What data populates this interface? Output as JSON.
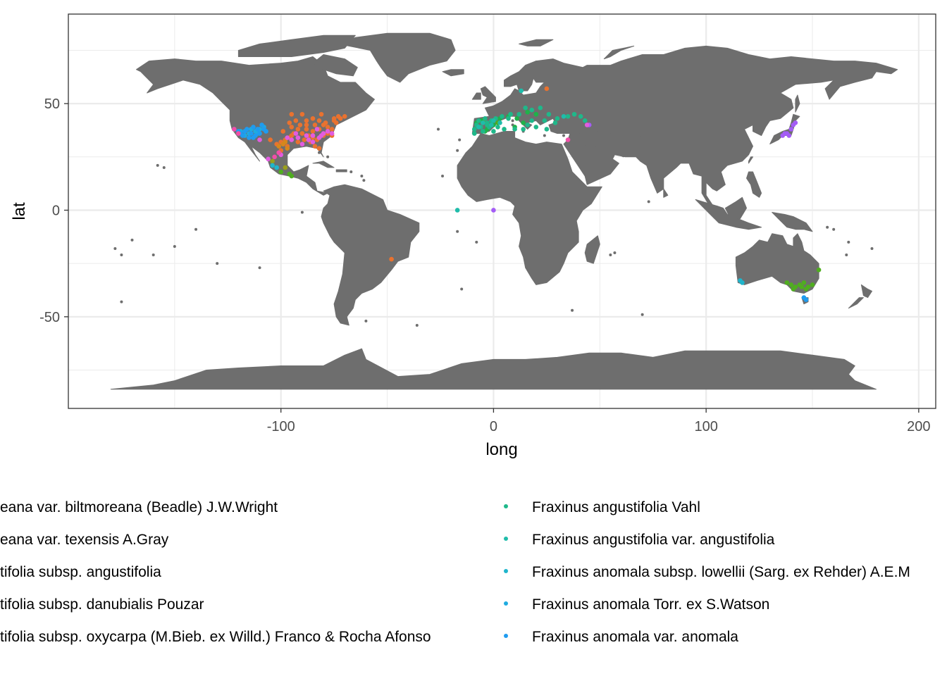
{
  "chart_data": {
    "type": "scatter",
    "title": "",
    "xlabel": "long",
    "ylabel": "lat",
    "xlim": [
      -200,
      208
    ],
    "ylim": [
      -93,
      92
    ],
    "x_ticks": [
      -100,
      0,
      100,
      200
    ],
    "y_ticks": [
      -50,
      0,
      50
    ],
    "x_tick_labels": [
      "-100",
      "0",
      "100",
      "200"
    ],
    "y_tick_labels": [
      "-50",
      "0",
      "50"
    ],
    "grid": true,
    "panel_background": "#ffffff",
    "grid_color": "#ebebeb",
    "land_color": "#6e6e6e",
    "legend_position": "bottom",
    "legend": [
      {
        "label": "Fraxinus americana var. biltmoreana (Beadle) J.W.Wright",
        "shown_label": "eana var. biltmoreana (Beadle) J.W.Wright",
        "color": "#e9722f"
      },
      {
        "label": "Fraxinus americana var. texensis A.Gray",
        "shown_label": "eana var. texensis A.Gray",
        "color": "#d6871c"
      },
      {
        "label": "Fraxinus angustifolia subsp. angustifolia",
        "shown_label": "tifolia subsp. angustifolia",
        "color": "#9a9f1c"
      },
      {
        "label": "Fraxinus angustifolia subsp. danubialis Pouzar",
        "shown_label": "tifolia subsp. danubialis Pouzar",
        "color": "#4fae1f"
      },
      {
        "label": "Fraxinus angustifolia subsp. oxycarpa (M.Bieb. ex Willd.) Franco & Rocha Afonso",
        "shown_label": "tifolia subsp. oxycarpa (M.Bieb. ex Willd.) Franco & Rocha Afonso",
        "color": "#1fb24a"
      },
      {
        "label": "Fraxinus angustifolia Vahl",
        "shown_label": "Fraxinus angustifolia Vahl",
        "color": "#1fb88a"
      },
      {
        "label": "Fraxinus angustifolia var. angustifolia",
        "shown_label": "Fraxinus angustifolia var. angustifolia",
        "color": "#1fbcaa"
      },
      {
        "label": "Fraxinus anomala subsp. lowellii (Sarg. ex Rehder) A.E.Murray",
        "shown_label": "Fraxinus anomala subsp. lowellii (Sarg. ex Rehder) A.E.M",
        "color": "#1fb5cc"
      },
      {
        "label": "Fraxinus anomala Torr. ex S.Watson",
        "shown_label": "Fraxinus anomala Torr. ex S.Watson",
        "color": "#1fabe0"
      },
      {
        "label": "Fraxinus anomala var. anomala",
        "shown_label": "Fraxinus anomala var. anomala",
        "color": "#1f9cf0"
      }
    ],
    "series": [
      {
        "color": "#e9722f",
        "points": [
          [
            -95,
            35
          ],
          [
            -90,
            36
          ],
          [
            -85,
            37
          ],
          [
            -82,
            38
          ],
          [
            -80,
            40
          ],
          [
            -78,
            39
          ],
          [
            -75,
            42
          ],
          [
            -72,
            43
          ],
          [
            -70,
            44
          ],
          [
            -88,
            40
          ],
          [
            -92,
            38
          ],
          [
            -95,
            39
          ],
          [
            -98,
            33
          ],
          [
            -97,
            30
          ],
          [
            -100,
            28
          ],
          [
            -85,
            34
          ],
          [
            -83,
            33
          ],
          [
            -80,
            35
          ],
          [
            -78,
            36
          ],
          [
            -88,
            42
          ],
          [
            -85,
            43
          ],
          [
            -82,
            42
          ],
          [
            -90,
            45
          ],
          [
            -95,
            45
          ],
          [
            -93,
            42
          ],
          [
            -87,
            35
          ],
          [
            -84,
            30
          ],
          [
            -82,
            29
          ],
          [
            -86,
            32
          ],
          [
            -76,
            38
          ],
          [
            -74,
            41
          ],
          [
            -100,
            32
          ],
          [
            -102,
            31
          ],
          [
            -96,
            34
          ],
          [
            -91,
            40
          ],
          [
            -89,
            33
          ],
          [
            -79,
            41
          ],
          [
            -73,
            44
          ],
          [
            -81,
            45
          ],
          [
            -94,
            36
          ],
          [
            -99,
            37
          ],
          [
            -76,
            35
          ],
          [
            -105,
            33
          ],
          [
            -92,
            32
          ],
          [
            -88,
            38
          ],
          [
            -48,
            -23
          ],
          [
            25,
            57
          ],
          [
            -75,
            43
          ],
          [
            -84,
            40
          ],
          [
            -96,
            41
          ]
        ]
      },
      {
        "color": "#d6871c",
        "points": [
          [
            -99,
            31
          ],
          [
            -97,
            29
          ],
          [
            -101,
            30
          ],
          [
            -98,
            32
          ]
        ]
      },
      {
        "color": "#9a9f1c",
        "points": [
          [
            -104,
            23
          ],
          [
            -98,
            20
          ]
        ]
      },
      {
        "color": "#4fae1f",
        "points": [
          [
            -96,
            17
          ],
          [
            -95,
            16
          ],
          [
            140,
            -35
          ],
          [
            142,
            -36
          ],
          [
            145,
            -36
          ],
          [
            147,
            -37
          ],
          [
            150,
            -35
          ],
          [
            153,
            -28
          ],
          [
            138,
            -34
          ],
          [
            141,
            -37
          ],
          [
            144,
            -35
          ],
          [
            148,
            -36
          ],
          [
            -3,
            40
          ],
          [
            -5,
            42
          ],
          [
            2,
            41
          ],
          [
            146,
            -34
          ],
          [
            -100,
            18
          ]
        ]
      },
      {
        "color": "#1fb24a",
        "points": [
          [
            -8,
            41
          ],
          [
            -6,
            42
          ],
          [
            -3,
            38
          ],
          [
            0,
            40
          ],
          [
            3,
            43
          ],
          [
            7,
            44
          ],
          [
            11,
            43
          ],
          [
            14,
            41
          ],
          [
            16,
            46
          ],
          [
            20,
            45
          ],
          [
            -4,
            37
          ],
          [
            10,
            39
          ]
        ]
      },
      {
        "color": "#1fb88a",
        "points": [
          [
            -9,
            38
          ],
          [
            -6,
            39
          ],
          [
            -3,
            41
          ],
          [
            -1,
            42
          ],
          [
            1,
            43
          ],
          [
            4,
            44
          ],
          [
            8,
            45
          ],
          [
            12,
            45
          ],
          [
            15,
            48
          ],
          [
            18,
            47
          ],
          [
            22,
            48
          ],
          [
            26,
            45
          ],
          [
            30,
            43
          ],
          [
            35,
            44
          ],
          [
            38,
            45
          ],
          [
            41,
            44
          ],
          [
            43,
            42
          ],
          [
            -5,
            37
          ],
          [
            -8,
            40
          ],
          [
            -2,
            39
          ],
          [
            2,
            39
          ],
          [
            5,
            38
          ],
          [
            10,
            38
          ],
          [
            14,
            38
          ],
          [
            16,
            40
          ],
          [
            20,
            39
          ],
          [
            25,
            38
          ],
          [
            29,
            41
          ],
          [
            7,
            43
          ],
          [
            -9,
            36
          ],
          [
            -7,
            42
          ],
          [
            -4,
            43
          ],
          [
            0,
            37
          ],
          [
            24,
            42
          ],
          [
            18,
            42
          ],
          [
            -3,
            40
          ]
        ]
      },
      {
        "color": "#1fbcaa",
        "points": [
          [
            -17,
            0
          ],
          [
            13,
            56
          ],
          [
            33,
            44
          ],
          [
            -5,
            41
          ],
          [
            -1,
            40
          ],
          [
            3,
            41
          ],
          [
            -7,
            39
          ],
          [
            0,
            42
          ]
        ]
      },
      {
        "color": "#1fb5cc",
        "points": [
          [
            116,
            -33
          ],
          [
            117,
            -34
          ],
          [
            -102,
            20
          ],
          [
            -104,
            21
          ]
        ]
      },
      {
        "color": "#1fabe0",
        "points": [
          [
            -122,
            38
          ],
          [
            -119,
            37
          ],
          [
            -115,
            36
          ],
          [
            -112,
            37
          ],
          [
            -110,
            38
          ],
          [
            -108,
            39
          ],
          [
            -117,
            35
          ],
          [
            -114,
            38
          ],
          [
            -111,
            36
          ]
        ]
      },
      {
        "color": "#1f9cf0",
        "points": [
          [
            -120,
            37
          ],
          [
            -118,
            35
          ],
          [
            -116,
            38
          ],
          [
            -114,
            36
          ],
          [
            -113,
            39
          ],
          [
            -112,
            35
          ],
          [
            -110,
            36
          ],
          [
            -109,
            40
          ],
          [
            -108,
            38
          ],
          [
            -115,
            34
          ],
          [
            -111,
            38
          ],
          [
            -117,
            37
          ],
          [
            -107,
            37
          ],
          [
            -119,
            36
          ],
          [
            -113,
            34
          ],
          [
            147,
            -42
          ],
          [
            146,
            -41
          ]
        ]
      },
      {
        "color": "#a45cf6",
        "points": [
          [
            136,
            35
          ],
          [
            138,
            36
          ],
          [
            140,
            38
          ],
          [
            141,
            40
          ],
          [
            139,
            35
          ],
          [
            142,
            41
          ],
          [
            137,
            36
          ],
          [
            0,
            0
          ],
          [
            45,
            40
          ]
        ]
      },
      {
        "color": "#e25ce0",
        "points": [
          [
            -95,
            33
          ],
          [
            -92,
            34
          ],
          [
            -88,
            35
          ],
          [
            -85,
            35
          ],
          [
            -82,
            34
          ],
          [
            -80,
            36
          ],
          [
            -78,
            37
          ],
          [
            -90,
            31
          ],
          [
            -87,
            33
          ],
          [
            -93,
            36
          ],
          [
            -85,
            32
          ],
          [
            -83,
            38
          ],
          [
            -76,
            36
          ],
          [
            -110,
            33
          ],
          [
            -100,
            26
          ],
          [
            -97,
            34
          ],
          [
            -106,
            24
          ],
          [
            44,
            40
          ],
          [
            -81,
            35
          ]
        ]
      },
      {
        "color": "#f24ea8",
        "points": [
          [
            -122,
            38
          ],
          [
            -120,
            36
          ],
          [
            -103,
            25
          ],
          [
            35,
            33
          ],
          [
            -101,
            27
          ]
        ]
      }
    ]
  }
}
